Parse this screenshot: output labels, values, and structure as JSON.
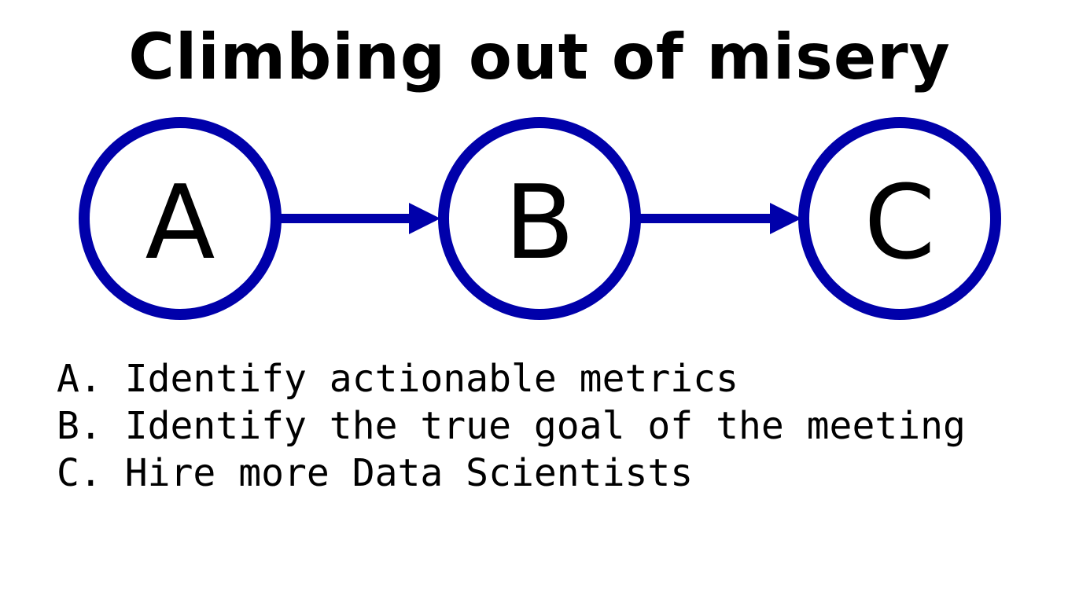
{
  "title": "Climbing out of misery",
  "colors": {
    "node_stroke": "#0000aa",
    "arrow": "#0000aa",
    "text": "#000000",
    "background": "#ffffff"
  },
  "nodes": [
    {
      "id": "A",
      "label": "A"
    },
    {
      "id": "B",
      "label": "B"
    },
    {
      "id": "C",
      "label": "C"
    }
  ],
  "edges": [
    {
      "from": "A",
      "to": "B"
    },
    {
      "from": "B",
      "to": "C"
    }
  ],
  "legend": [
    {
      "marker": "A.",
      "text": "Identify actionable metrics"
    },
    {
      "marker": "B.",
      "text": "Identify the true goal of the meeting"
    },
    {
      "marker": "C.",
      "text": "Hire more Data Scientists"
    }
  ]
}
